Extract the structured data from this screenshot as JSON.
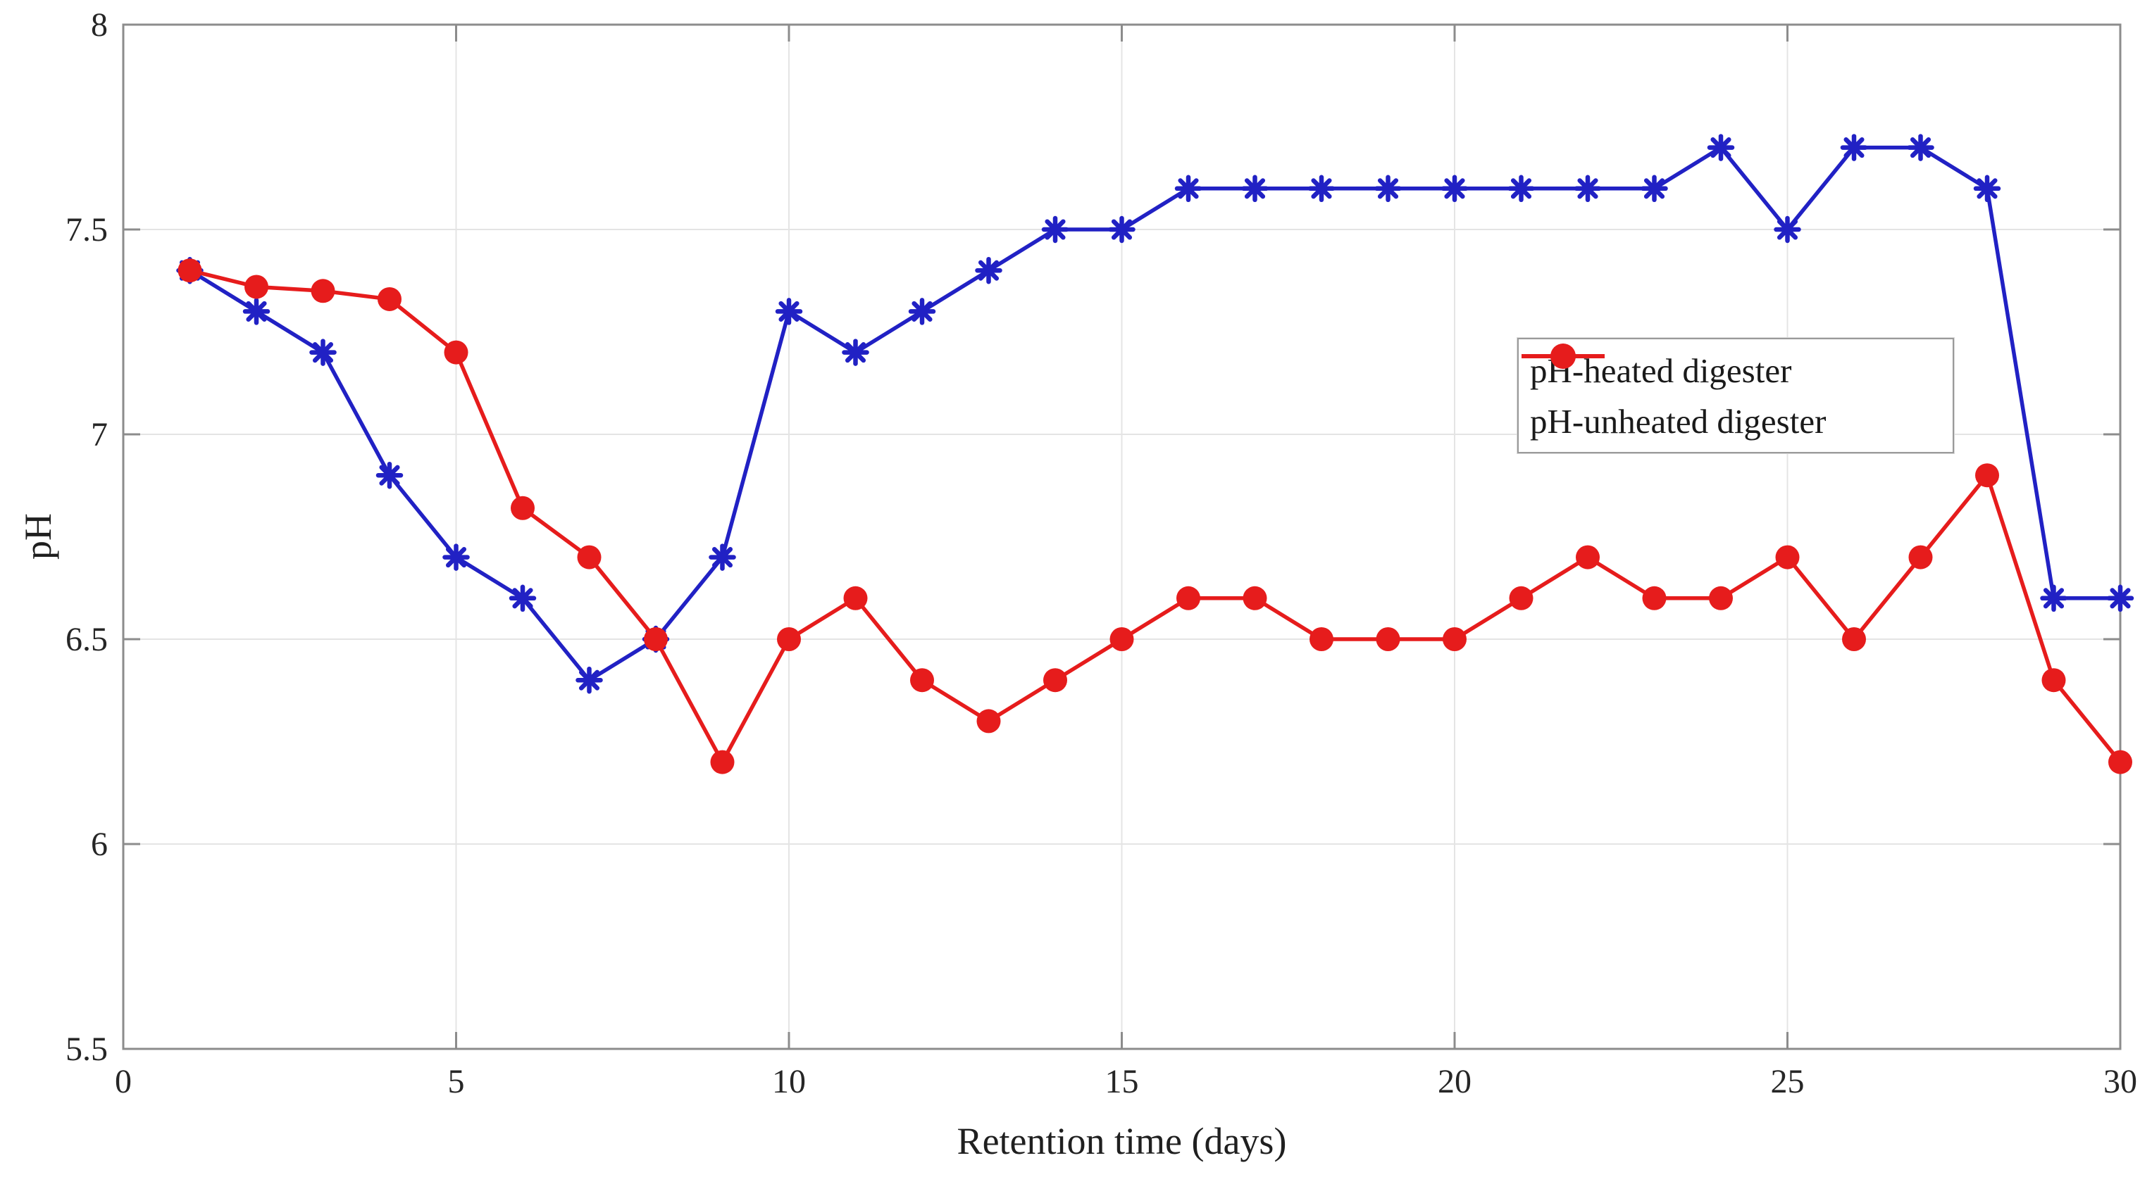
{
  "figure": {
    "background": "#ffffff"
  },
  "axes": {
    "x_title": "Retention time (days)",
    "y_title": "pH"
  },
  "legend": {
    "items": [
      {
        "label": "pH-heated digester"
      },
      {
        "label": "pH-unheated digester"
      }
    ]
  },
  "colors": {
    "heated_line": "#2121c4",
    "unheated_line": "#e61c1c",
    "grid": "#e4e4e4",
    "axis_box": "#8c8c8c",
    "tick": "#8c8c8c",
    "tick_label": "#262626"
  },
  "chart_data": {
    "type": "line",
    "title": "",
    "xlabel": "Retention time (days)",
    "ylabel": "pH",
    "xlim": [
      0,
      30
    ],
    "ylim": [
      5.5,
      8
    ],
    "x_ticks": [
      0,
      5,
      10,
      15,
      20,
      25,
      30
    ],
    "y_ticks": [
      5.5,
      6,
      6.5,
      7,
      7.5,
      8
    ],
    "grid": true,
    "legend_position": "right-center-inside",
    "x": [
      1,
      2,
      3,
      4,
      5,
      6,
      7,
      8,
      9,
      10,
      11,
      12,
      13,
      14,
      15,
      16,
      17,
      18,
      19,
      20,
      21,
      22,
      23,
      24,
      25,
      26,
      27,
      28,
      29,
      30
    ],
    "series": [
      {
        "name": "pH-heated digester",
        "color": "#2121c4",
        "marker": "asterisk",
        "values": [
          7.4,
          7.3,
          7.2,
          6.9,
          6.7,
          6.6,
          6.4,
          6.5,
          6.7,
          7.3,
          7.2,
          7.3,
          7.4,
          7.5,
          7.5,
          7.6,
          7.6,
          7.6,
          7.6,
          7.6,
          7.6,
          7.6,
          7.6,
          7.7,
          7.5,
          7.7,
          7.7,
          7.6,
          6.6,
          6.6
        ]
      },
      {
        "name": "pH-unheated digester",
        "color": "#e61c1c",
        "marker": "circle",
        "values": [
          7.4,
          7.36,
          7.35,
          7.33,
          7.2,
          6.82,
          6.7,
          6.5,
          6.2,
          6.5,
          6.6,
          6.4,
          6.3,
          6.4,
          6.5,
          6.6,
          6.6,
          6.5,
          6.5,
          6.5,
          6.6,
          6.7,
          6.6,
          6.6,
          6.7,
          6.5,
          6.7,
          6.9,
          6.4,
          6.2
        ]
      }
    ]
  }
}
